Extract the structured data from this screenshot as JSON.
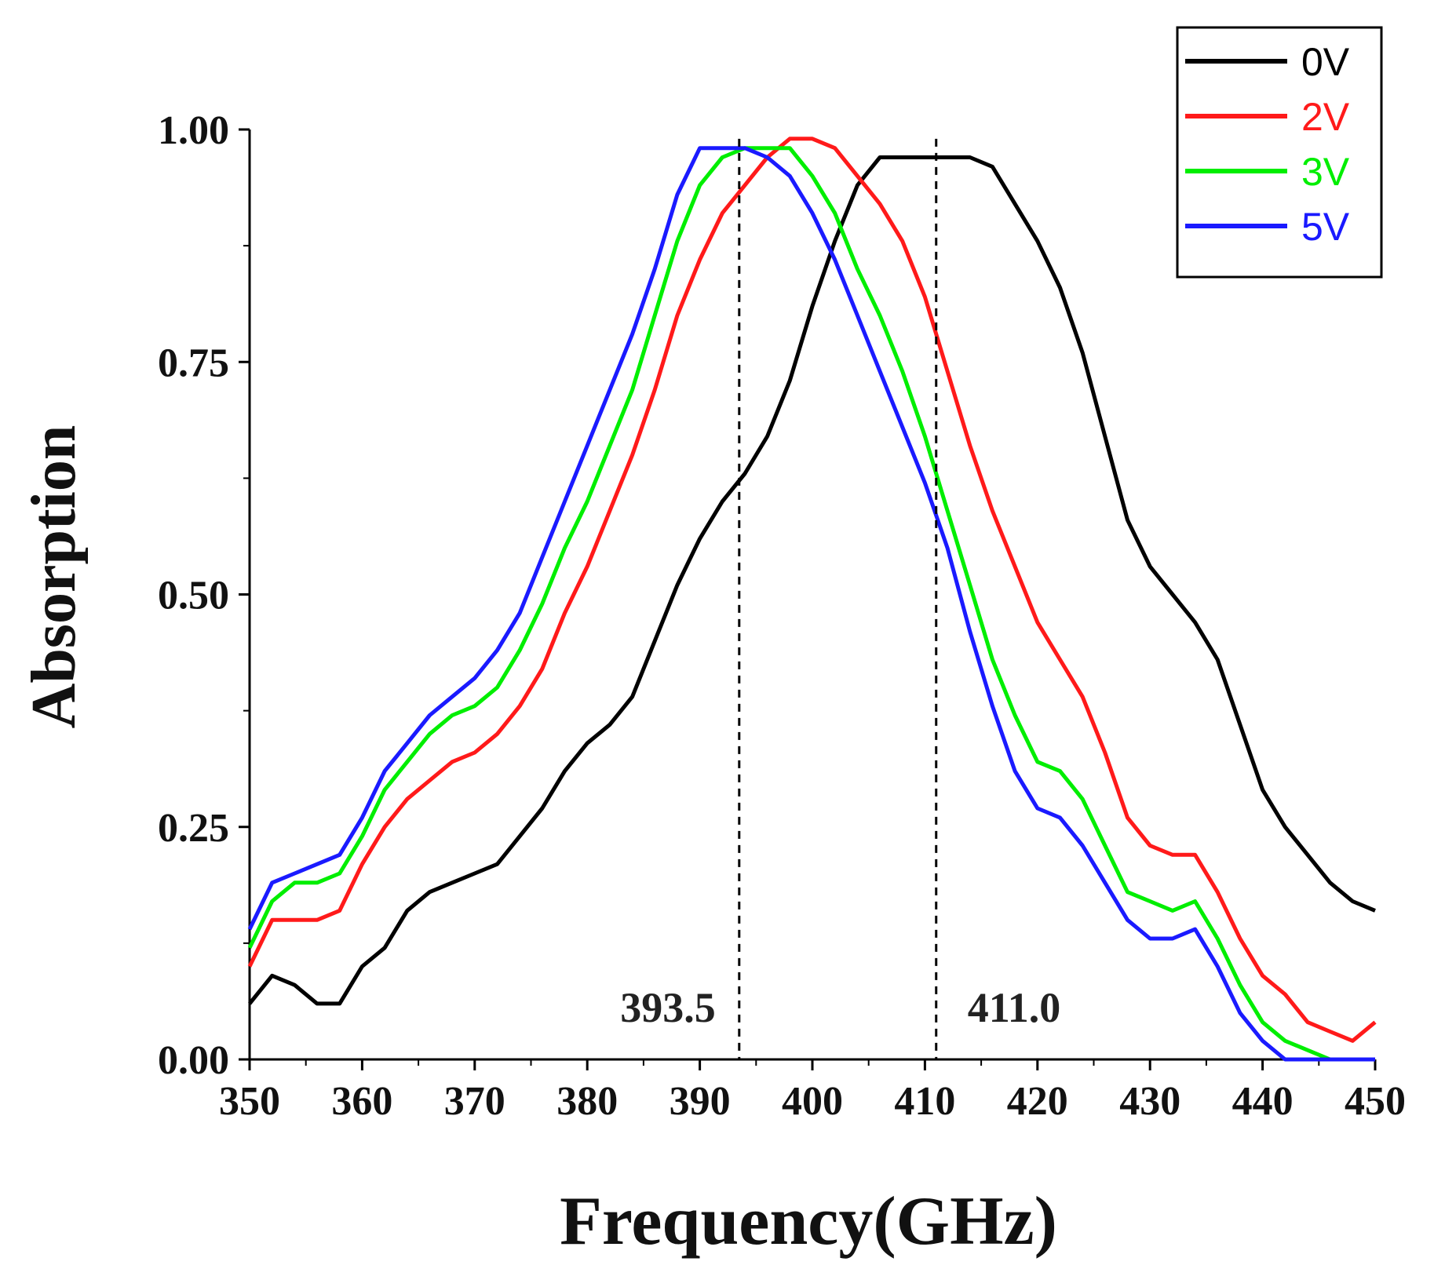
{
  "chart_data": {
    "type": "line",
    "title": "",
    "xlabel": "Frequency(GHz)",
    "ylabel": "Absorption",
    "xlim": [
      350,
      450
    ],
    "ylim": [
      0,
      1
    ],
    "xticks": [
      "350",
      "360",
      "370",
      "380",
      "390",
      "400",
      "410",
      "420",
      "430",
      "440",
      "450"
    ],
    "yticks": [
      "0.00",
      "0.25",
      "0.50",
      "0.75",
      "1.00"
    ],
    "legend_position": "top-right",
    "x": [
      350,
      352,
      354,
      356,
      358,
      360,
      362,
      364,
      366,
      368,
      370,
      372,
      374,
      376,
      378,
      380,
      382,
      384,
      386,
      388,
      390,
      392,
      394,
      396,
      398,
      400,
      402,
      404,
      406,
      408,
      410,
      412,
      414,
      416,
      418,
      420,
      422,
      424,
      426,
      428,
      430,
      432,
      434,
      436,
      438,
      440,
      442,
      444,
      446,
      448,
      450
    ],
    "series": [
      {
        "name": "0V",
        "color": "#000000",
        "values": [
          0.06,
          0.09,
          0.08,
          0.06,
          0.06,
          0.1,
          0.12,
          0.16,
          0.18,
          0.19,
          0.2,
          0.21,
          0.24,
          0.27,
          0.31,
          0.34,
          0.36,
          0.39,
          0.45,
          0.51,
          0.56,
          0.6,
          0.63,
          0.67,
          0.73,
          0.81,
          0.88,
          0.94,
          0.97,
          0.97,
          0.97,
          0.97,
          0.97,
          0.96,
          0.92,
          0.88,
          0.83,
          0.76,
          0.67,
          0.58,
          0.53,
          0.5,
          0.47,
          0.43,
          0.36,
          0.29,
          0.25,
          0.22,
          0.19,
          0.17,
          0.16
        ]
      },
      {
        "name": "2V",
        "color": "#ff1a1a",
        "values": [
          0.1,
          0.15,
          0.15,
          0.15,
          0.16,
          0.21,
          0.25,
          0.28,
          0.3,
          0.32,
          0.33,
          0.35,
          0.38,
          0.42,
          0.48,
          0.53,
          0.59,
          0.65,
          0.72,
          0.8,
          0.86,
          0.91,
          0.94,
          0.97,
          0.99,
          0.99,
          0.98,
          0.95,
          0.92,
          0.88,
          0.82,
          0.74,
          0.66,
          0.59,
          0.53,
          0.47,
          0.43,
          0.39,
          0.33,
          0.26,
          0.23,
          0.22,
          0.22,
          0.18,
          0.13,
          0.09,
          0.07,
          0.04,
          0.03,
          0.02,
          0.04
        ]
      },
      {
        "name": "3V",
        "color": "#00ee00",
        "values": [
          0.12,
          0.17,
          0.19,
          0.19,
          0.2,
          0.24,
          0.29,
          0.32,
          0.35,
          0.37,
          0.38,
          0.4,
          0.44,
          0.49,
          0.55,
          0.6,
          0.66,
          0.72,
          0.8,
          0.88,
          0.94,
          0.97,
          0.98,
          0.98,
          0.98,
          0.95,
          0.91,
          0.85,
          0.8,
          0.74,
          0.67,
          0.59,
          0.51,
          0.43,
          0.37,
          0.32,
          0.31,
          0.28,
          0.23,
          0.18,
          0.17,
          0.16,
          0.17,
          0.13,
          0.08,
          0.04,
          0.02,
          0.01,
          0.0,
          0.0,
          0.0
        ]
      },
      {
        "name": "5V",
        "color": "#1a1aff",
        "values": [
          0.14,
          0.19,
          0.2,
          0.21,
          0.22,
          0.26,
          0.31,
          0.34,
          0.37,
          0.39,
          0.41,
          0.44,
          0.48,
          0.54,
          0.6,
          0.66,
          0.72,
          0.78,
          0.85,
          0.93,
          0.98,
          0.98,
          0.98,
          0.97,
          0.95,
          0.91,
          0.86,
          0.8,
          0.74,
          0.68,
          0.62,
          0.55,
          0.46,
          0.38,
          0.31,
          0.27,
          0.26,
          0.23,
          0.19,
          0.15,
          0.13,
          0.13,
          0.14,
          0.1,
          0.05,
          0.02,
          0.0,
          0.0,
          0.0,
          0.0,
          0.0
        ]
      }
    ],
    "annotations": [
      {
        "x": 393.5,
        "label": "393.5",
        "style": "dashed-vertical"
      },
      {
        "x": 411.0,
        "label": "411.0",
        "style": "dashed-vertical"
      }
    ]
  }
}
